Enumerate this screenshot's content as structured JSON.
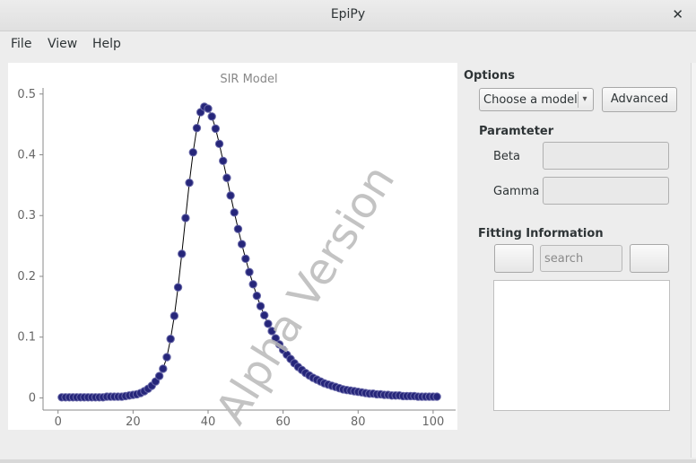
{
  "window": {
    "title": "EpiPy",
    "close_glyph": "✕"
  },
  "menu": {
    "items": [
      "File",
      "View",
      "Help"
    ]
  },
  "options": {
    "heading": "Options",
    "model_select": {
      "selected": "Choose a model",
      "arrow": "▾"
    },
    "advanced_label": "Advanced"
  },
  "parameter": {
    "heading": "Paramteter",
    "beta_label": "Beta",
    "gamma_label": "Gamma"
  },
  "fitting": {
    "heading": "Fitting Information",
    "search_placeholder": "search"
  },
  "chart_data": {
    "type": "line",
    "title": "SIR Model",
    "watermark": "Alpha Version",
    "xlabel": "",
    "ylabel": "",
    "xlim": [
      -4,
      106
    ],
    "ylim": [
      -0.02,
      0.51
    ],
    "xticks": [
      0,
      20,
      40,
      60,
      80,
      100
    ],
    "yticks": [
      0,
      0.1,
      0.2,
      0.3,
      0.4,
      0.5
    ],
    "ytick_labels": [
      "0",
      "0.1",
      "0.2",
      "0.3",
      "0.4",
      "0.5"
    ],
    "colors": {
      "marker": "#26267a",
      "marker_edge": "#6a6aaa",
      "line": "#000000",
      "axis": "#888888",
      "tick_label": "#666666",
      "title": "#888888",
      "watermark": "#b8b8b8"
    },
    "series": [
      {
        "style": "line-with-markers",
        "x": [
          1,
          2,
          3,
          4,
          5,
          6,
          7,
          8,
          9,
          10,
          11,
          12,
          13,
          14,
          15,
          16,
          17,
          18,
          19,
          20,
          21,
          22,
          23,
          24,
          25,
          26,
          27,
          28,
          29,
          30,
          31,
          32,
          33,
          34,
          35,
          36,
          37,
          38,
          39,
          40,
          41,
          42,
          43,
          44,
          45,
          46,
          47,
          48,
          49,
          50,
          51,
          52,
          53,
          54,
          55,
          56,
          57,
          58,
          59,
          60,
          61,
          62,
          63,
          64,
          65,
          66,
          67,
          68,
          69,
          70,
          71,
          72,
          73,
          74,
          75,
          76,
          77,
          78,
          79,
          80,
          81,
          82,
          83,
          84,
          85,
          86,
          87,
          88,
          89,
          90,
          91,
          92,
          93,
          94,
          95,
          96,
          97,
          98,
          99,
          100,
          101
        ],
        "y": [
          0.001,
          0.001,
          0.001,
          0.001,
          0.001,
          0.001,
          0.001,
          0.001,
          0.001,
          0.001,
          0.001,
          0.001,
          0.002,
          0.002,
          0.002,
          0.002,
          0.002,
          0.003,
          0.004,
          0.005,
          0.006,
          0.008,
          0.011,
          0.015,
          0.02,
          0.027,
          0.036,
          0.048,
          0.067,
          0.097,
          0.135,
          0.182,
          0.237,
          0.296,
          0.354,
          0.404,
          0.444,
          0.47,
          0.479,
          0.476,
          0.463,
          0.443,
          0.418,
          0.39,
          0.362,
          0.333,
          0.305,
          0.278,
          0.253,
          0.229,
          0.207,
          0.187,
          0.168,
          0.151,
          0.136,
          0.122,
          0.11,
          0.098,
          0.088,
          0.079,
          0.071,
          0.064,
          0.057,
          0.051,
          0.046,
          0.041,
          0.037,
          0.033,
          0.03,
          0.027,
          0.024,
          0.022,
          0.02,
          0.018,
          0.016,
          0.014,
          0.013,
          0.012,
          0.011,
          0.01,
          0.009,
          0.008,
          0.007,
          0.007,
          0.006,
          0.006,
          0.005,
          0.005,
          0.004,
          0.004,
          0.004,
          0.003,
          0.003,
          0.003,
          0.003,
          0.002,
          0.002,
          0.002,
          0.002,
          0.002,
          0.002
        ]
      }
    ]
  }
}
